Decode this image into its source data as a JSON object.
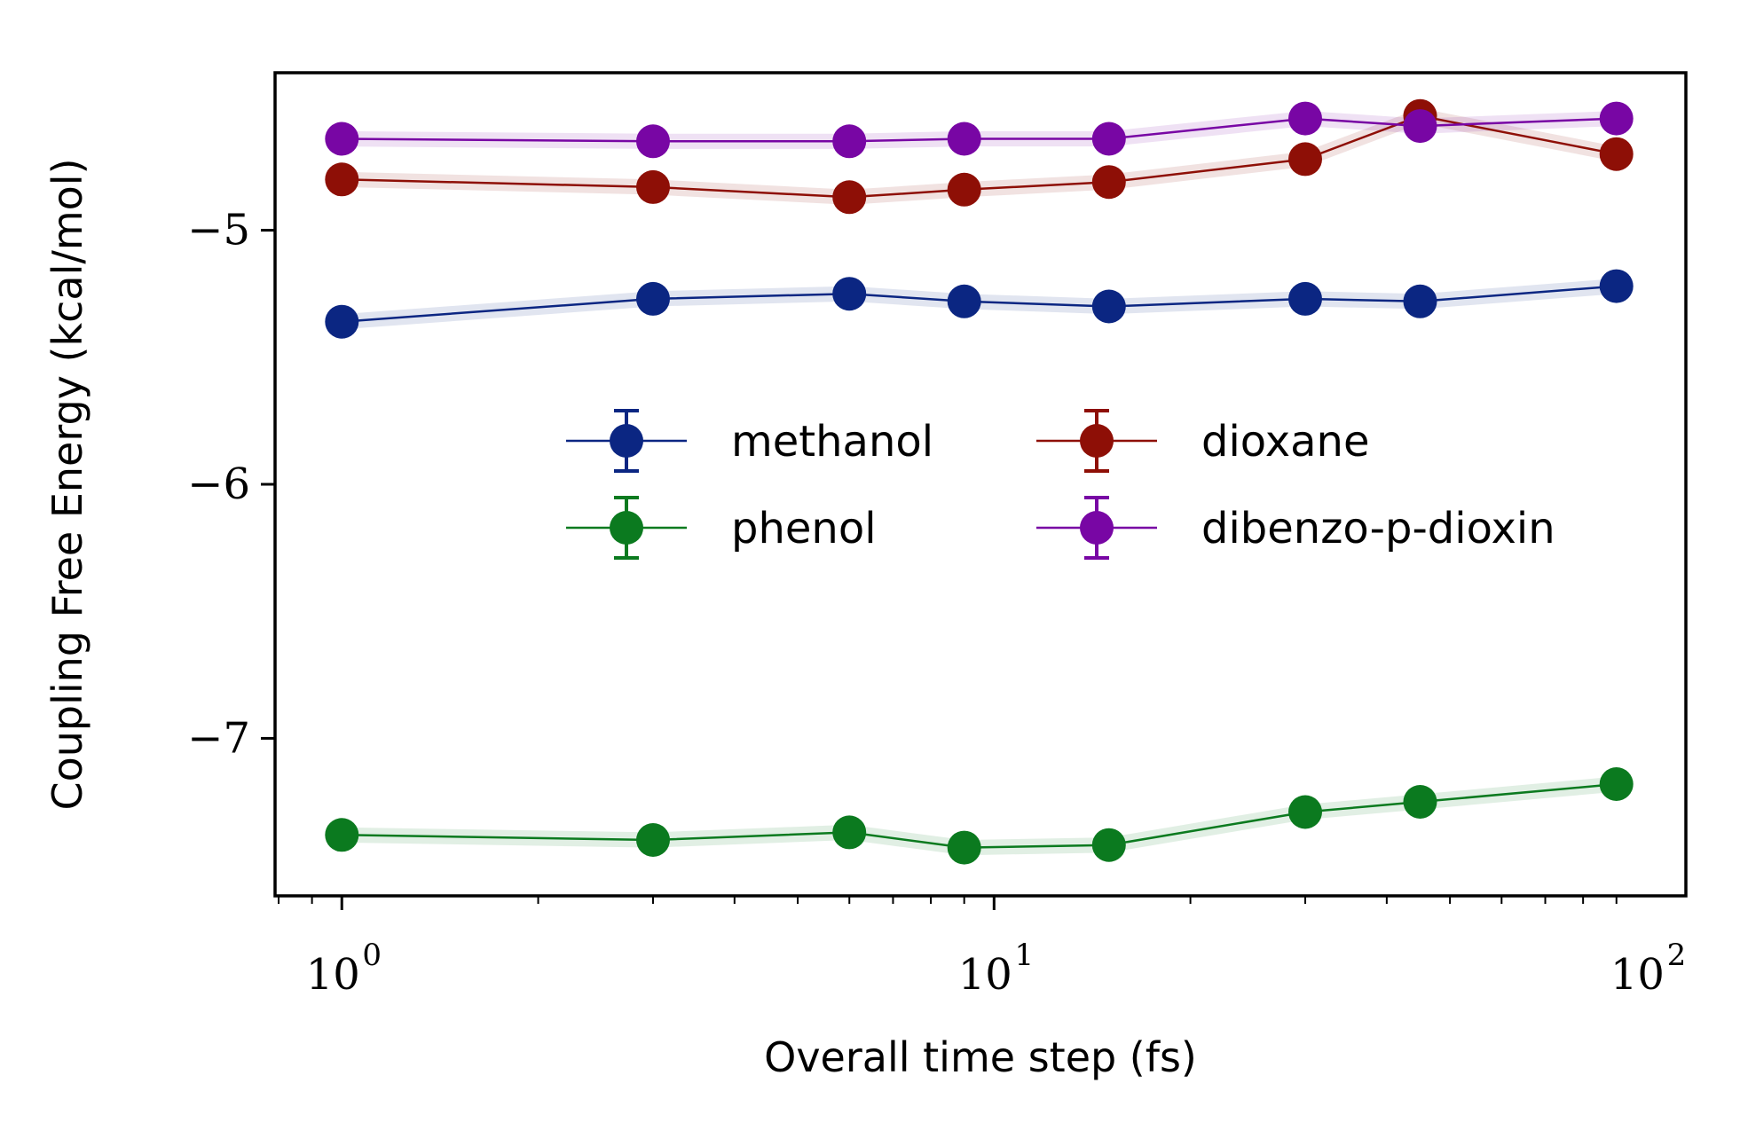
{
  "chart_data": {
    "type": "line",
    "xlabel": "Overall time step (fs)",
    "ylabel": "Coupling Free Energy (kcal/mol)",
    "xscale": "log",
    "xlim": [
      0.79,
      115
    ],
    "ylim": [
      -7.62,
      -4.38
    ],
    "x_ticks": [
      {
        "value": 1,
        "base": "10",
        "exp": "0"
      },
      {
        "value": 10,
        "base": "10",
        "exp": "1"
      },
      {
        "value": 100,
        "base": "10",
        "exp": "2"
      }
    ],
    "y_ticks": [
      {
        "value": -5,
        "label": "−5"
      },
      {
        "value": -6,
        "label": "−6"
      },
      {
        "value": -7,
        "label": "−7"
      }
    ],
    "grid": false,
    "legend": {
      "placement": "center",
      "columns": 2
    },
    "x": [
      1,
      3,
      6,
      9,
      15,
      30,
      45,
      90
    ],
    "series": [
      {
        "name": "methanol",
        "color": "#0b2682",
        "values": [
          -5.36,
          -5.27,
          -5.25,
          -5.28,
          -5.3,
          -5.27,
          -5.28,
          -5.22
        ],
        "error": 0.03
      },
      {
        "name": "phenol",
        "color": "#0b7a1f",
        "values": [
          -7.38,
          -7.4,
          -7.37,
          -7.43,
          -7.42,
          -7.29,
          -7.25,
          -7.18
        ],
        "error": 0.03
      },
      {
        "name": "dioxane",
        "color": "#8e0f06",
        "values": [
          -4.8,
          -4.83,
          -4.87,
          -4.84,
          -4.81,
          -4.72,
          -4.55,
          -4.7
        ],
        "error": 0.03
      },
      {
        "name": "dibenzo-p-dioxin",
        "color": "#7806a4",
        "values": [
          -4.64,
          -4.65,
          -4.65,
          -4.64,
          -4.64,
          -4.56,
          -4.59,
          -4.56
        ],
        "error": 0.03
      }
    ]
  }
}
